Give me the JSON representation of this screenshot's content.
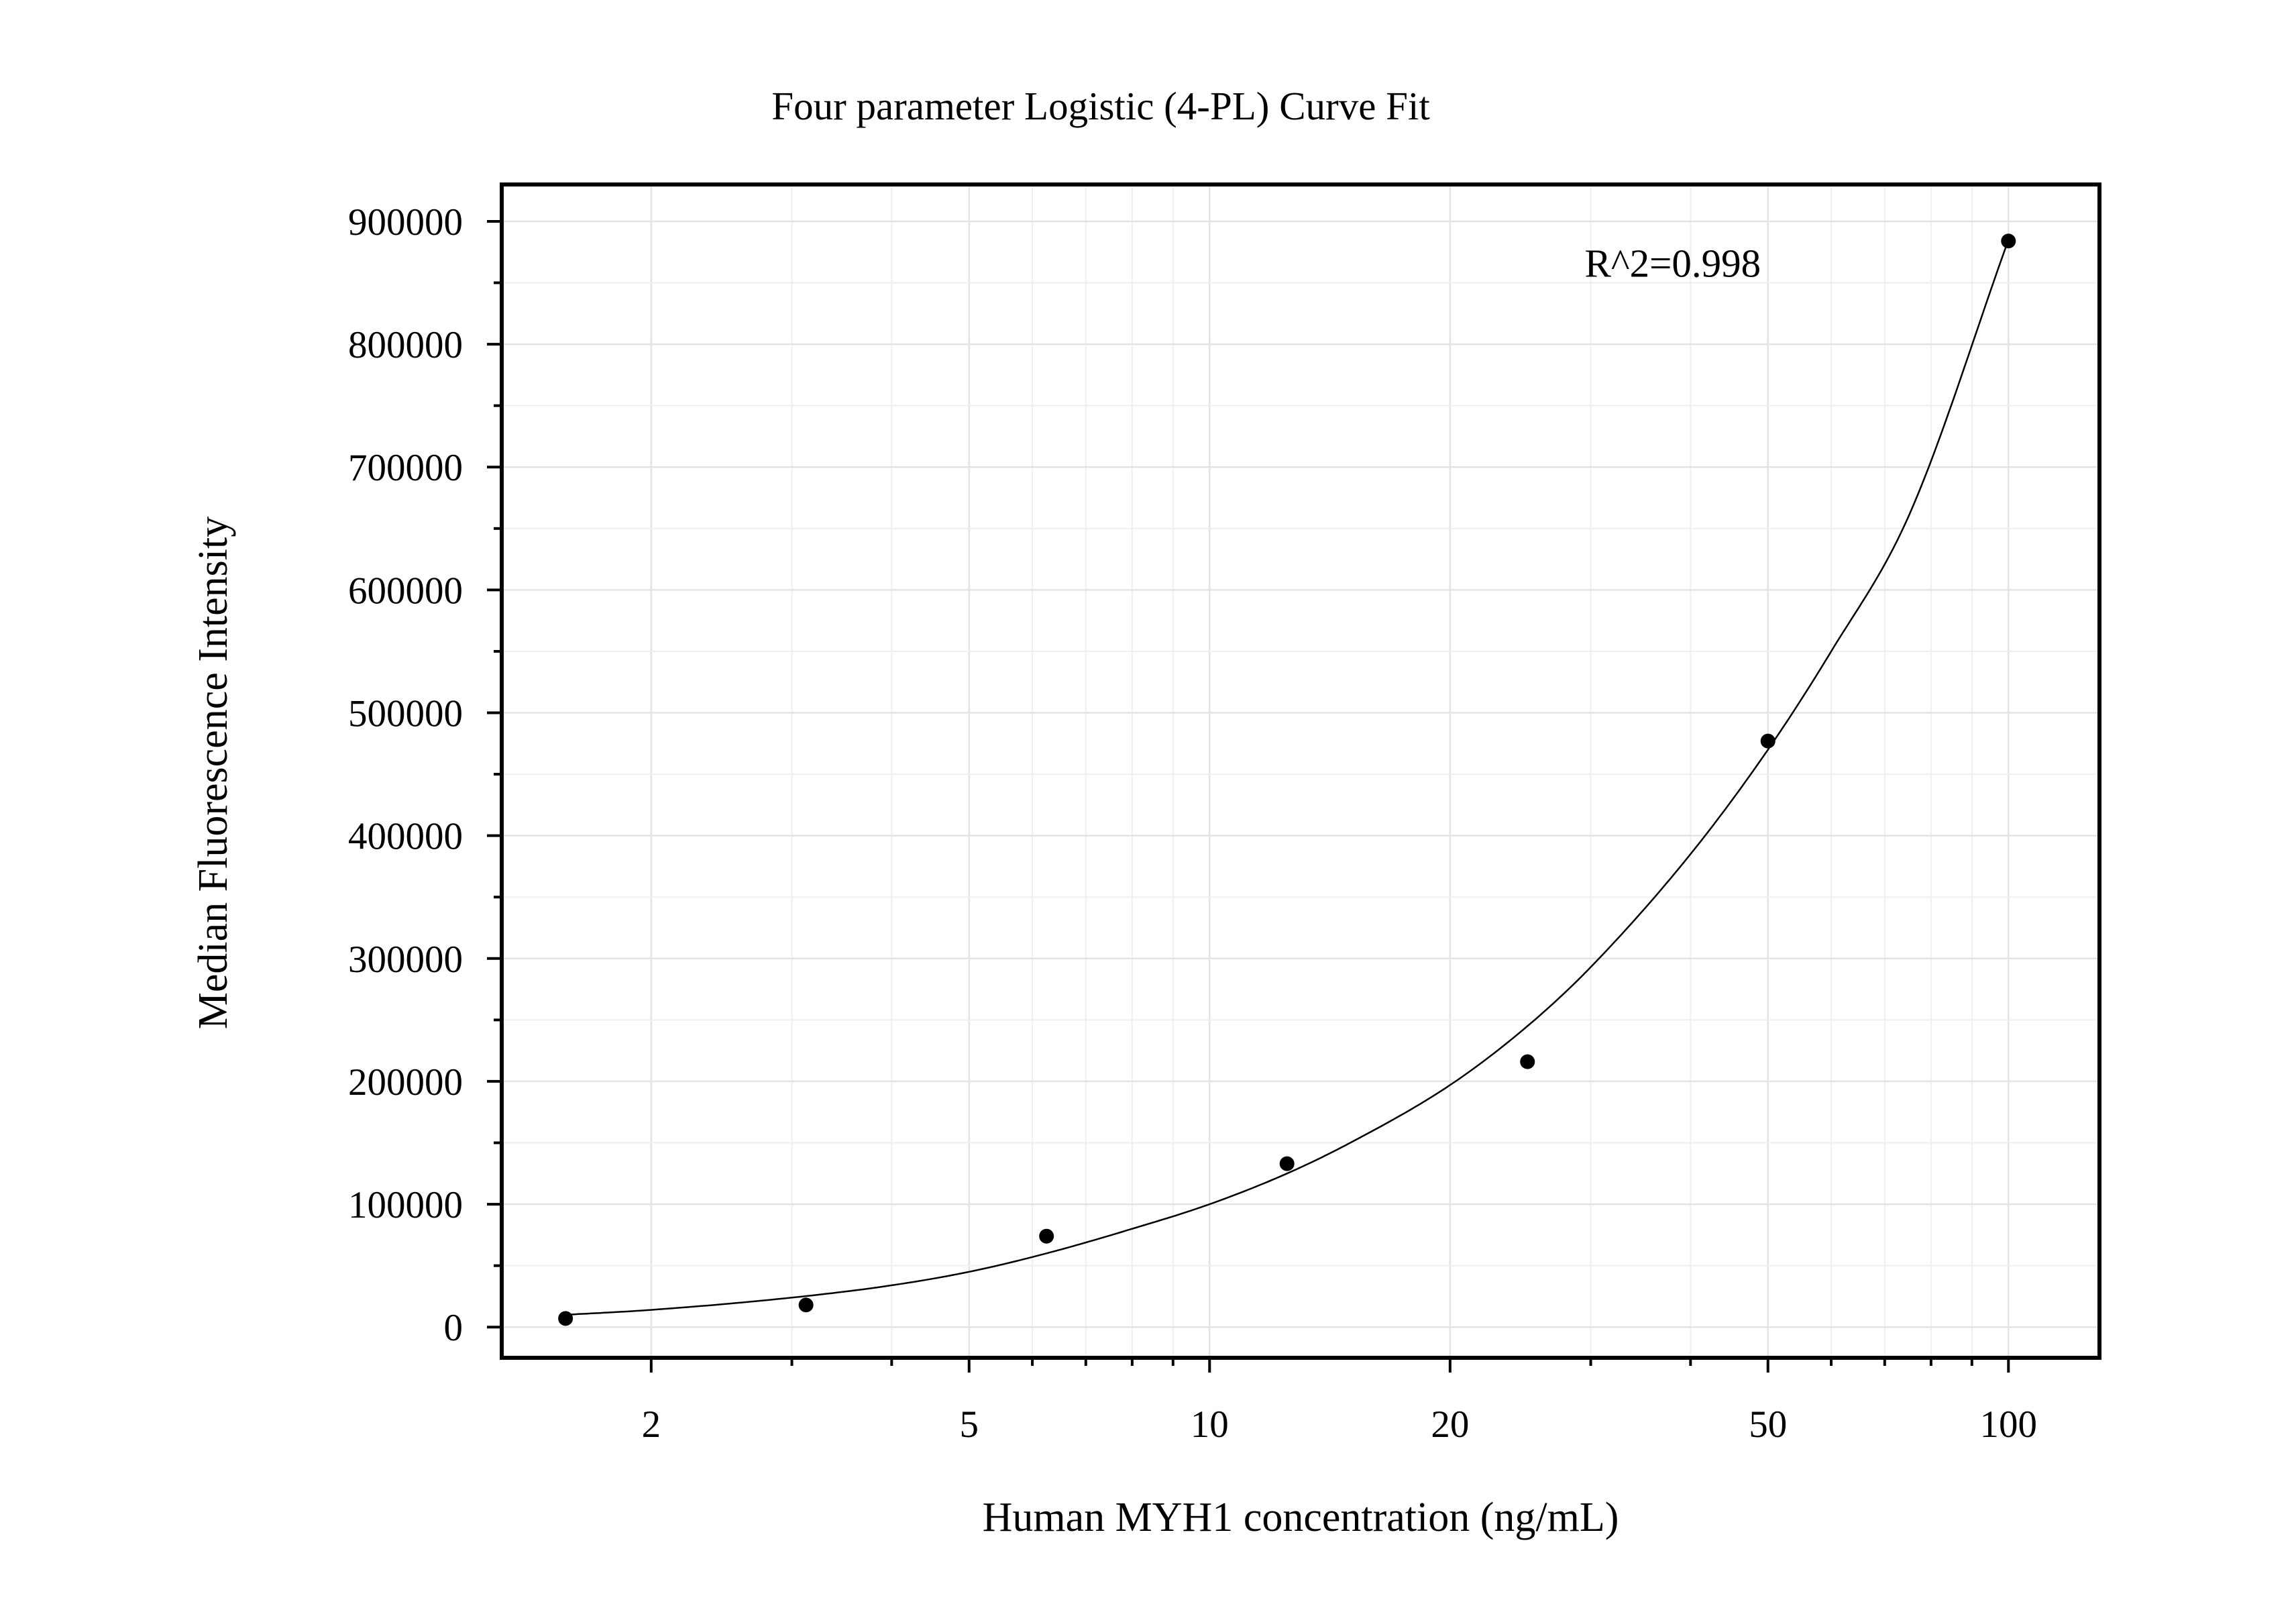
{
  "chart_data": {
    "type": "scatter",
    "title": "Four parameter Logistic (4-PL) Curve Fit",
    "xlabel": "Human MYH1 concentration (ng/mL)",
    "ylabel": "Median Fluorescence Intensity",
    "x_scale": "log",
    "xlim": [
      1.3,
      130
    ],
    "ylim": [
      -25000,
      930000
    ],
    "x_ticks": [
      2,
      5,
      10,
      20,
      50,
      100
    ],
    "x_tick_labels": [
      "2",
      "5",
      "10",
      "20",
      "50",
      "100"
    ],
    "y_ticks": [
      0,
      100000,
      200000,
      300000,
      400000,
      500000,
      600000,
      700000,
      800000,
      900000
    ],
    "y_tick_labels": [
      "0",
      "100000",
      "200000",
      "300000",
      "400000",
      "500000",
      "600000",
      "700000",
      "800000",
      "900000"
    ],
    "grid": true,
    "series": [
      {
        "type": "scatter",
        "x": [
          1.5625,
          3.125,
          6.25,
          12.5,
          25,
          50,
          100
        ],
        "y": [
          7000,
          18000,
          74000,
          133000,
          216000,
          477000,
          884000
        ]
      },
      {
        "type": "line",
        "x": [
          1.5625,
          2,
          3,
          4,
          5,
          6.25,
          8,
          10,
          12.5,
          15,
          20,
          25,
          30,
          40,
          50,
          60,
          75,
          100
        ],
        "y": [
          10000,
          14000,
          24000,
          34000,
          45000,
          60000,
          80000,
          100000,
          125000,
          150000,
          197000,
          245000,
          293000,
          385000,
          470000,
          550000,
          660000,
          885000
        ]
      }
    ],
    "annotations": [
      {
        "text": "R^2=0.998",
        "x": 38,
        "y": 855000
      }
    ]
  }
}
